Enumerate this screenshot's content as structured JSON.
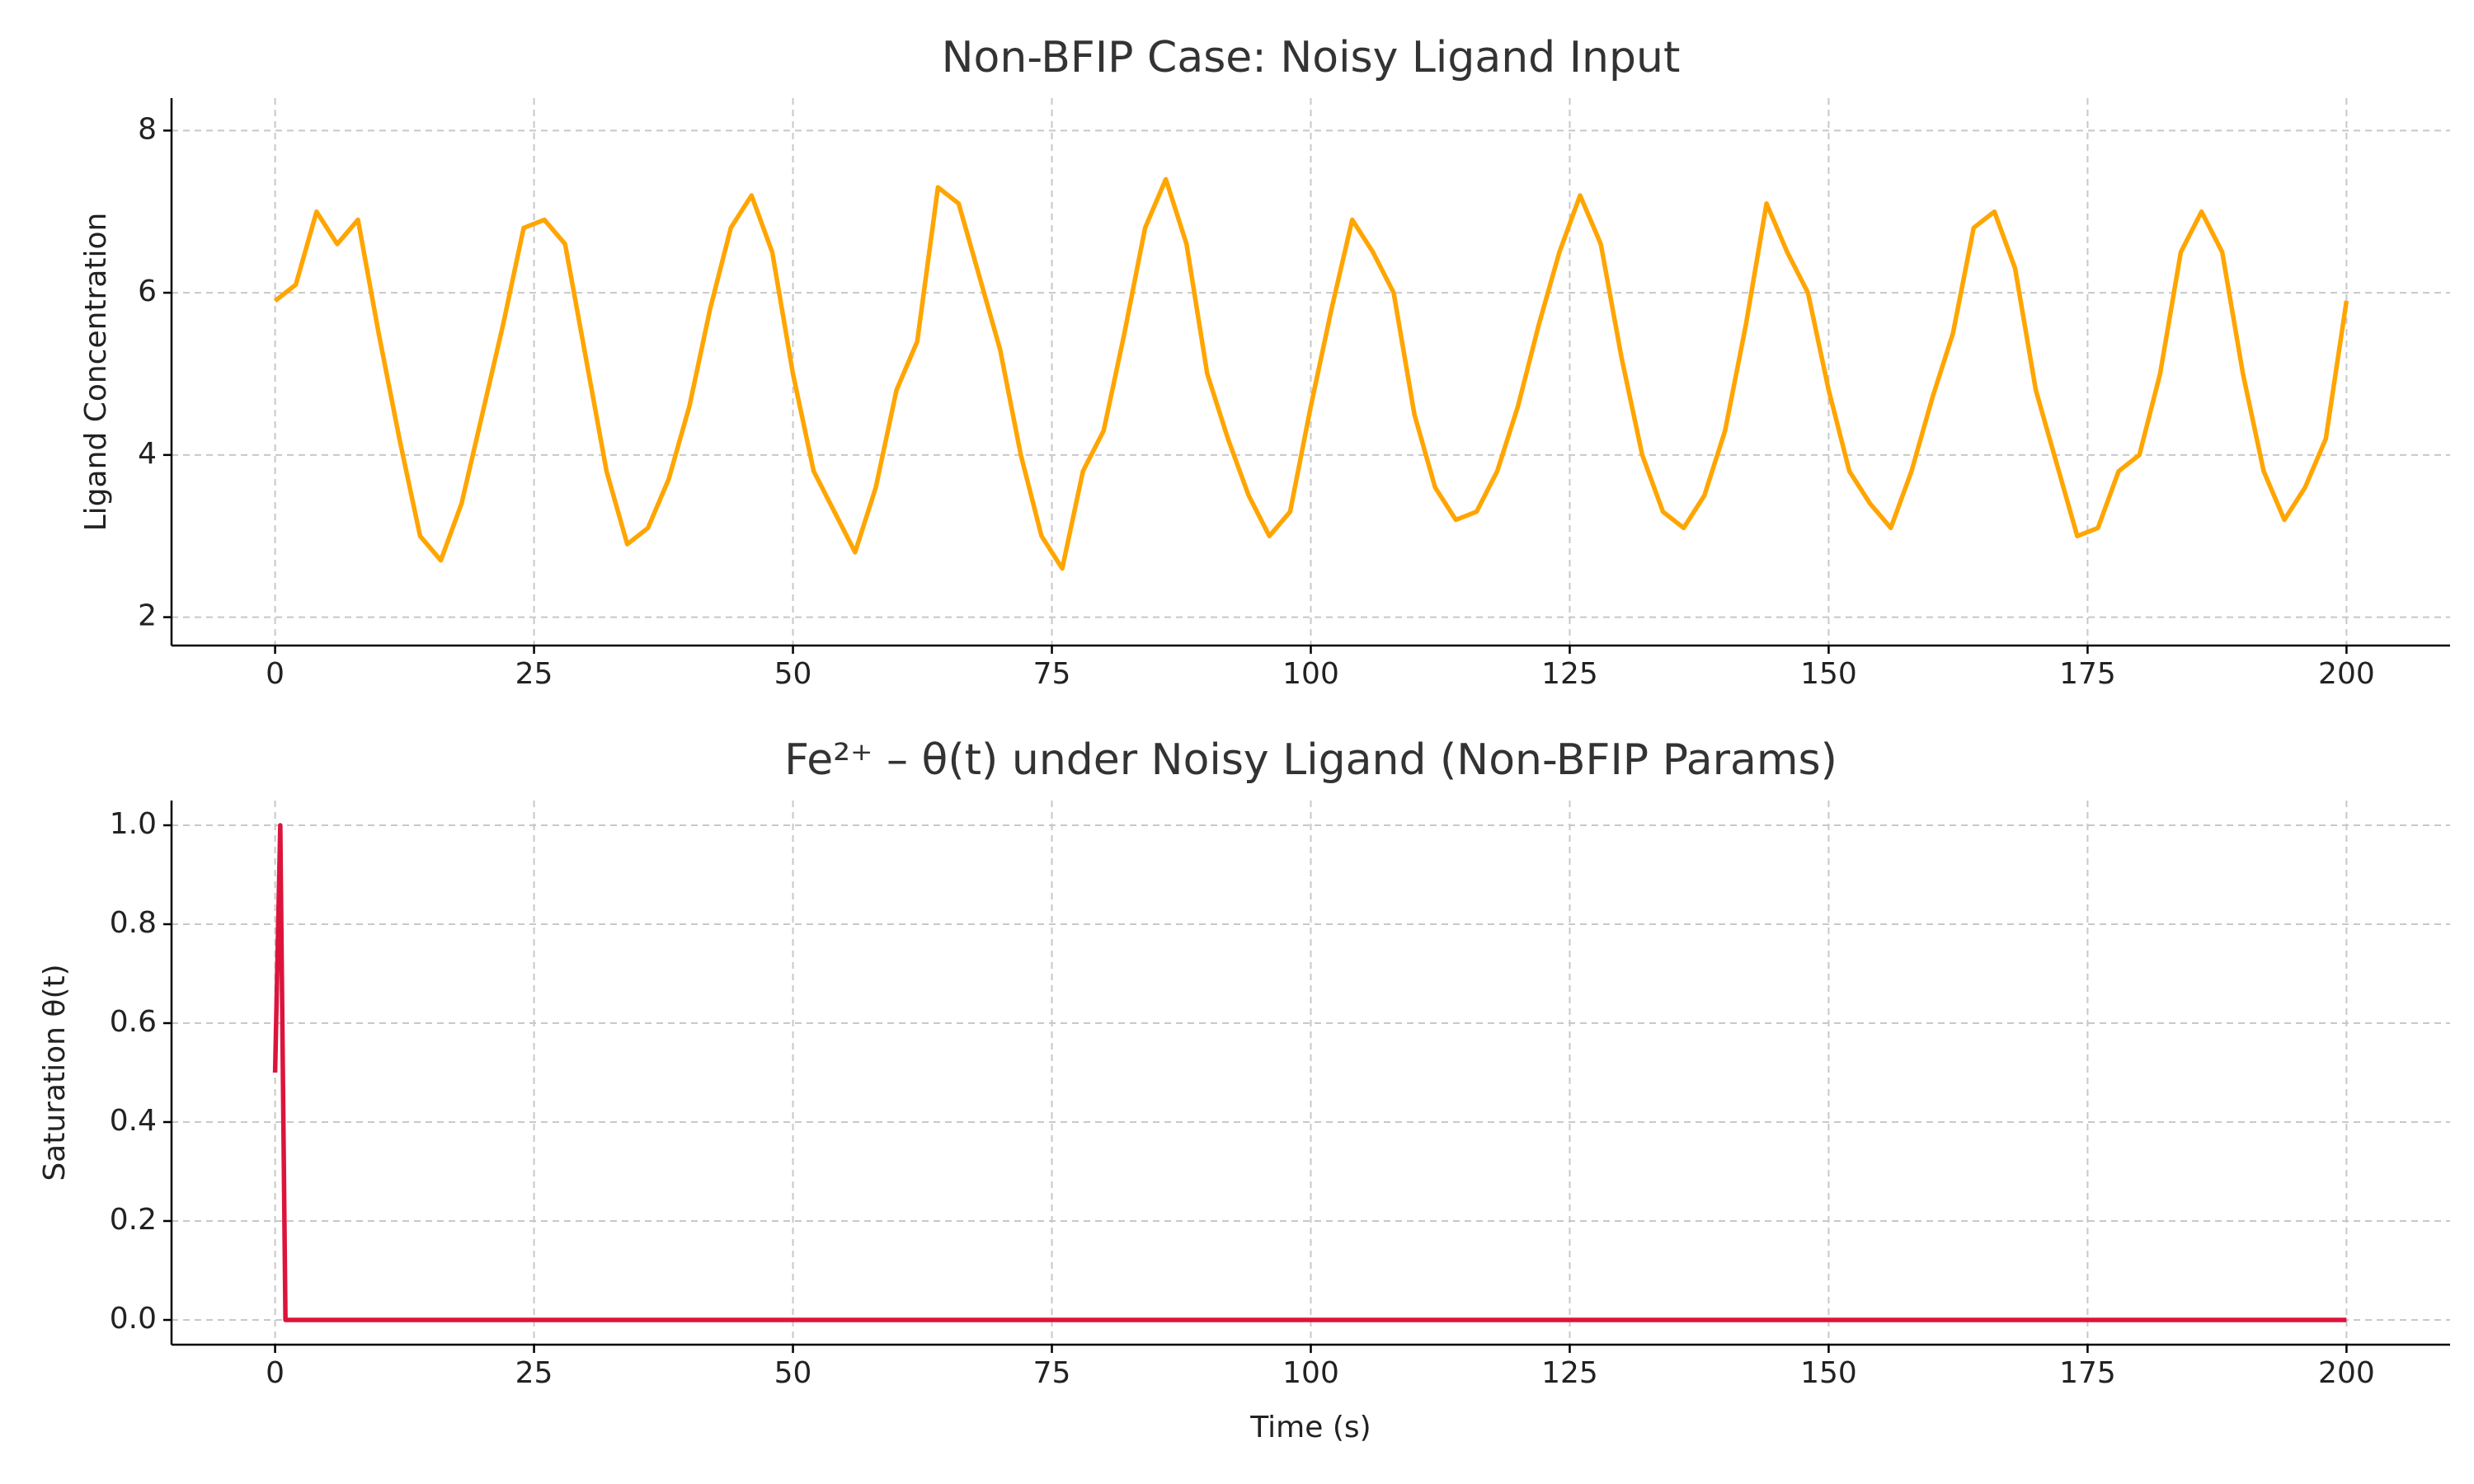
{
  "chart_data": [
    {
      "type": "line",
      "title": "Non-BFIP Case: Noisy Ligand Input",
      "ylabel": "Ligand Concentration",
      "color": "#ffa500",
      "grid": true,
      "x": [
        0,
        2,
        4,
        6,
        8,
        10,
        12,
        14,
        16,
        18,
        20,
        22,
        24,
        26,
        28,
        30,
        32,
        34,
        36,
        38,
        40,
        42,
        44,
        46,
        48,
        50,
        52,
        54,
        56,
        58,
        60,
        62,
        64,
        66,
        68,
        70,
        72,
        74,
        76,
        78,
        80,
        82,
        84,
        86,
        88,
        90,
        92,
        94,
        96,
        98,
        100,
        102,
        104,
        106,
        108,
        110,
        112,
        114,
        116,
        118,
        120,
        122,
        124,
        126,
        128,
        130,
        132,
        134,
        136,
        138,
        140,
        142,
        144,
        146,
        148,
        150,
        152,
        154,
        156,
        158,
        160,
        162,
        164,
        166,
        168,
        170,
        172,
        174,
        176,
        178,
        180,
        182,
        184,
        186,
        188,
        190,
        192,
        194,
        196,
        198,
        200
      ],
      "values": [
        5.9,
        6.1,
        7.0,
        6.6,
        6.9,
        5.5,
        4.2,
        3.0,
        2.7,
        3.4,
        4.5,
        5.6,
        6.8,
        6.9,
        6.6,
        5.2,
        3.8,
        2.9,
        3.1,
        3.7,
        4.6,
        5.8,
        6.8,
        7.2,
        6.5,
        5.0,
        3.8,
        3.3,
        2.8,
        3.6,
        4.8,
        5.4,
        7.3,
        7.1,
        6.2,
        5.3,
        4.0,
        3.0,
        2.6,
        3.8,
        4.3,
        5.5,
        6.8,
        7.4,
        6.6,
        5.0,
        4.2,
        3.5,
        3.0,
        3.3,
        4.6,
        5.8,
        6.9,
        6.5,
        6.0,
        4.5,
        3.6,
        3.2,
        3.3,
        3.8,
        4.6,
        5.6,
        6.5,
        7.2,
        6.6,
        5.2,
        4.0,
        3.3,
        3.1,
        3.5,
        4.3,
        5.6,
        7.1,
        6.5,
        6.0,
        4.8,
        3.8,
        3.4,
        3.1,
        3.8,
        4.7,
        5.5,
        6.8,
        7.0,
        6.3,
        4.8,
        3.9,
        3.0,
        3.1,
        3.8,
        4.0,
        5.0,
        6.5,
        7.0,
        6.5,
        5.0,
        3.8,
        3.2,
        3.6,
        4.2,
        5.9
      ],
      "xlim": [
        -10,
        210
      ],
      "xticks": [
        0,
        25,
        50,
        75,
        100,
        125,
        150,
        175,
        200
      ],
      "ylim": [
        1.65,
        8.4
      ],
      "yticks": [
        2,
        4,
        6,
        8
      ]
    },
    {
      "type": "line",
      "title": "Fe²⁺ – θ(t) under Noisy Ligand (Non-BFIP Params)",
      "xlabel": "Time (s)",
      "ylabel": "Saturation θ(t)",
      "color": "#dc143c",
      "grid": true,
      "x": [
        0,
        0.5,
        1,
        200
      ],
      "values": [
        0.5,
        1.0,
        0,
        0
      ],
      "xlim": [
        -10,
        210
      ],
      "xticks": [
        0,
        25,
        50,
        75,
        100,
        125,
        150,
        175,
        200
      ],
      "ylim": [
        -0.05,
        1.05
      ],
      "yticks": [
        {
          "value": 0,
          "label": "0.0"
        },
        0.2,
        0.4,
        0.6,
        0.8,
        {
          "value": 1,
          "label": "1.0"
        }
      ]
    }
  ]
}
